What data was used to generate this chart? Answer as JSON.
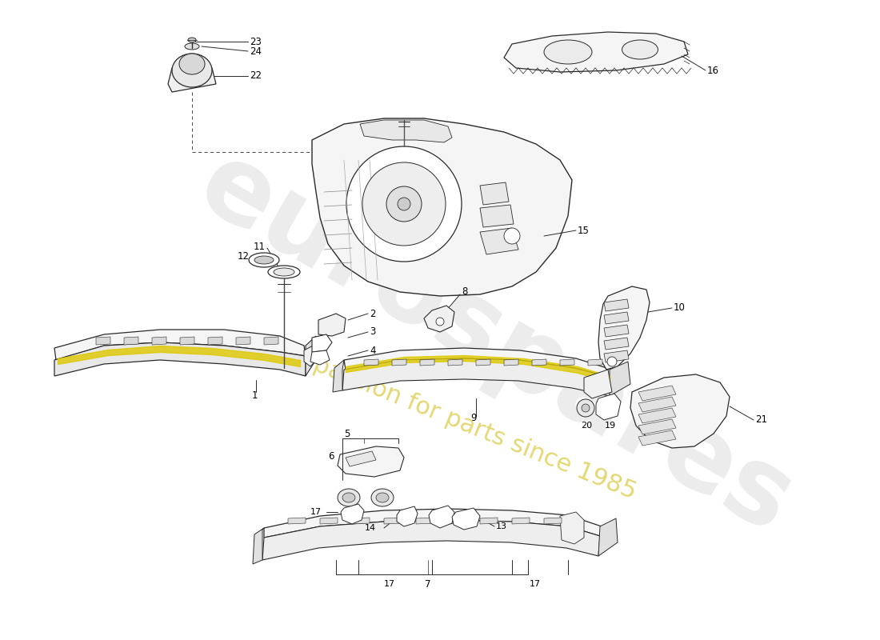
{
  "background_color": "#ffffff",
  "line_color": "#2a2a2a",
  "label_color": "#000000",
  "watermark1": "eurospares",
  "watermark2": "a passion for parts since 1985",
  "wm1_color": "#d0d0d0",
  "wm2_color": "#ccb800",
  "fig_width": 11.0,
  "fig_height": 8.0,
  "dpi": 100
}
